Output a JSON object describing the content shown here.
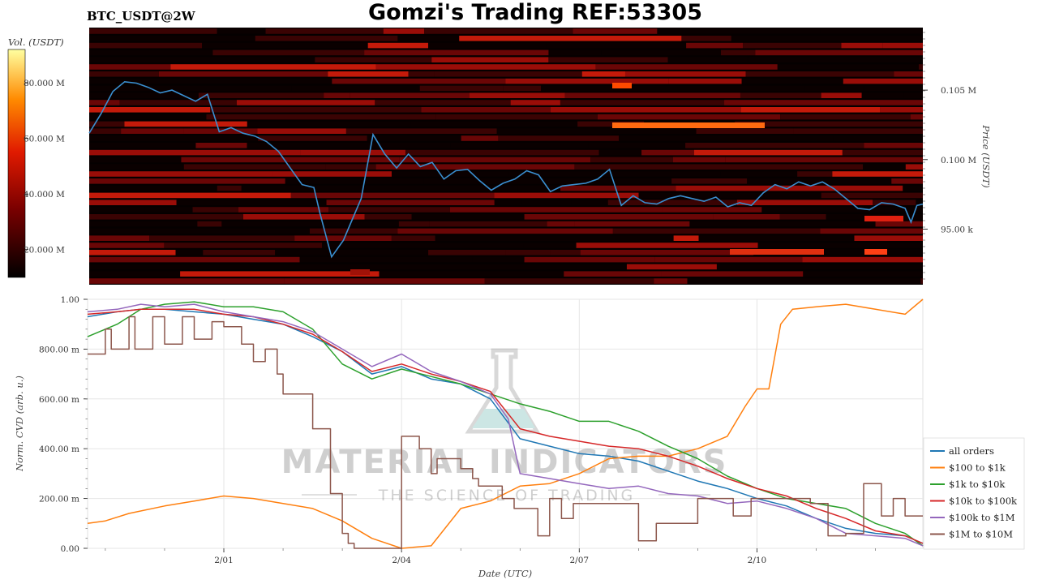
{
  "header": {
    "symbol": "BTC_USDT@2W",
    "title": "Gomzi's Trading REF:53305"
  },
  "watermark": {
    "brand": "MATERIAL INDICATORS",
    "tagline": "THE SCIENCE OF TRADING"
  },
  "colors": {
    "all_orders": "#1f77b4",
    "r100_1k": "#ff7f0e",
    "r1k_10k": "#2ca02c",
    "r10k_100k": "#d62728",
    "r100k_1m": "#9467bd",
    "r1m_10m": "#8c564b",
    "price_line": "#3a8fd0"
  },
  "chart_data": [
    {
      "type": "heatmap",
      "colorbar": {
        "label": "Vol. (USDT)",
        "ticks": [
          "20.000 M",
          "40.000 M",
          "60.000 M",
          "80.000 M"
        ],
        "tick_values": [
          20,
          40,
          60,
          80
        ],
        "range": [
          10,
          92
        ]
      },
      "ylabel": "Price (USDT)",
      "y_ticks": [
        "95.00 k",
        "0.100 M",
        "0.105 M"
      ],
      "y_tick_values": [
        95000,
        100000,
        105000
      ],
      "ylim": [
        91000,
        109500
      ],
      "x_ticks": [
        "2/01",
        "2/04",
        "2/07",
        "2/10"
      ],
      "xlim": [
        -1.3,
        12.8
      ],
      "price_series": {
        "x": [
          -1.3,
          -1.1,
          -0.9,
          -0.7,
          -0.5,
          -0.3,
          -0.1,
          0.1,
          0.3,
          0.5,
          0.7,
          0.9,
          1.1,
          1.3,
          1.5,
          1.7,
          1.9,
          2.1,
          2.3,
          2.5,
          2.6,
          2.8,
          3.0,
          3.1,
          3.3,
          3.5,
          3.7,
          3.9,
          4.1,
          4.3,
          4.5,
          4.7,
          4.9,
          5.1,
          5.3,
          5.5,
          5.7,
          5.9,
          6.1,
          6.3,
          6.5,
          6.7,
          6.9,
          7.1,
          7.3,
          7.5,
          7.7,
          7.9,
          8.1,
          8.3,
          8.5,
          8.7,
          8.9,
          9.1,
          9.3,
          9.5,
          9.7,
          9.9,
          10.1,
          10.3,
          10.5,
          10.7,
          10.9,
          11.1,
          11.3,
          11.5,
          11.7,
          11.9,
          12.1,
          12.3,
          12.5,
          12.6,
          12.7,
          12.8
        ],
        "y": [
          101900,
          103300,
          104900,
          105600,
          105500,
          105200,
          104800,
          105000,
          104600,
          104200,
          104700,
          102000,
          102300,
          101900,
          101700,
          101300,
          100600,
          99400,
          98200,
          98000,
          96200,
          93000,
          94200,
          95200,
          97200,
          101800,
          100400,
          99400,
          100400,
          99500,
          99800,
          98600,
          99200,
          99300,
          98500,
          97800,
          98300,
          98600,
          99200,
          98900,
          97700,
          98100,
          98200,
          98300,
          98600,
          99300,
          96700,
          97400,
          96900,
          96800,
          97200,
          97400,
          97200,
          97000,
          97300,
          96600,
          96900,
          96700,
          97600,
          98200,
          97900,
          98400,
          98100,
          98400,
          97900,
          97200,
          96500,
          96400,
          96900,
          96800,
          96500,
          95500,
          96700,
          96800
        ]
      }
    },
    {
      "type": "line",
      "xlabel": "Date (UTC)",
      "ylabel": "Norm. CVD (arb. u.)",
      "x_ticks": [
        "2/01",
        "2/04",
        "2/07",
        "2/10"
      ],
      "x_tick_values": [
        1,
        4,
        7,
        10
      ],
      "xlim": [
        -1.3,
        12.8
      ],
      "y_ticks": [
        "0.00",
        "200.00 m",
        "400.00 m",
        "600.00 m",
        "800.00 m",
        "1.00"
      ],
      "y_tick_values": [
        0,
        0.2,
        0.4,
        0.6,
        0.8,
        1.0
      ],
      "ylim": [
        0,
        1.0
      ],
      "legend_position": "bottom-right",
      "series": [
        {
          "name": "all orders",
          "key": "all_orders",
          "x": [
            -1.3,
            -0.8,
            -0.4,
            0,
            0.5,
            1.0,
            1.5,
            2.0,
            2.5,
            3.0,
            3.5,
            4.0,
            4.5,
            5.0,
            5.5,
            6.0,
            6.5,
            7.0,
            7.5,
            8.0,
            8.5,
            9.0,
            9.5,
            10.0,
            10.5,
            11.0,
            11.5,
            12.0,
            12.5,
            12.8
          ],
          "y": [
            0.93,
            0.95,
            0.96,
            0.96,
            0.95,
            0.94,
            0.92,
            0.9,
            0.85,
            0.79,
            0.7,
            0.73,
            0.68,
            0.66,
            0.6,
            0.44,
            0.41,
            0.38,
            0.37,
            0.35,
            0.31,
            0.27,
            0.24,
            0.2,
            0.17,
            0.12,
            0.08,
            0.06,
            0.05,
            0.02
          ]
        },
        {
          "name": "$100 to $1k",
          "key": "r100_1k",
          "x": [
            -1.3,
            -1.0,
            -0.6,
            0,
            0.5,
            1.0,
            1.5,
            2.0,
            2.5,
            3.0,
            3.5,
            4.0,
            4.5,
            5.0,
            5.5,
            6.0,
            6.5,
            7.0,
            7.5,
            8.0,
            8.5,
            9.0,
            9.5,
            9.8,
            10.0,
            10.2,
            10.4,
            10.6,
            11.0,
            11.5,
            12.0,
            12.5,
            12.8
          ],
          "y": [
            0.1,
            0.11,
            0.14,
            0.17,
            0.19,
            0.21,
            0.2,
            0.18,
            0.16,
            0.11,
            0.04,
            0.0,
            0.01,
            0.16,
            0.19,
            0.25,
            0.26,
            0.3,
            0.36,
            0.37,
            0.37,
            0.4,
            0.45,
            0.57,
            0.64,
            0.64,
            0.9,
            0.96,
            0.97,
            0.98,
            0.96,
            0.94,
            1.0
          ]
        },
        {
          "name": "$1k to $10k",
          "key": "r1k_10k",
          "x": [
            -1.3,
            -0.8,
            -0.4,
            0,
            0.5,
            1.0,
            1.5,
            2.0,
            2.5,
            3.0,
            3.5,
            4.0,
            4.5,
            5.0,
            5.5,
            6.0,
            6.5,
            7.0,
            7.5,
            8.0,
            8.5,
            9.0,
            9.5,
            10.0,
            10.5,
            11.0,
            11.5,
            12.0,
            12.5,
            12.8
          ],
          "y": [
            0.85,
            0.9,
            0.96,
            0.98,
            0.99,
            0.97,
            0.97,
            0.95,
            0.88,
            0.74,
            0.68,
            0.72,
            0.69,
            0.66,
            0.62,
            0.58,
            0.55,
            0.51,
            0.51,
            0.47,
            0.41,
            0.36,
            0.29,
            0.24,
            0.2,
            0.18,
            0.16,
            0.1,
            0.06,
            0.01
          ]
        },
        {
          "name": "$10k to $100k",
          "key": "r10k_100k",
          "x": [
            -1.3,
            -0.8,
            -0.4,
            0,
            0.5,
            1.0,
            1.5,
            2.0,
            2.5,
            3.0,
            3.5,
            4.0,
            4.5,
            5.0,
            5.5,
            6.0,
            6.5,
            7.0,
            7.5,
            8.0,
            8.5,
            9.0,
            9.5,
            10.0,
            10.5,
            11.0,
            11.5,
            12.0,
            12.5,
            12.8
          ],
          "y": [
            0.94,
            0.95,
            0.96,
            0.96,
            0.96,
            0.94,
            0.93,
            0.9,
            0.86,
            0.79,
            0.71,
            0.74,
            0.7,
            0.67,
            0.63,
            0.48,
            0.45,
            0.43,
            0.41,
            0.4,
            0.37,
            0.33,
            0.28,
            0.24,
            0.21,
            0.16,
            0.12,
            0.07,
            0.05,
            0.02
          ]
        },
        {
          "name": "$100k to $1M",
          "key": "r100k_1m",
          "x": [
            -1.3,
            -0.8,
            -0.4,
            0,
            0.5,
            1.0,
            1.5,
            2.0,
            2.5,
            3.0,
            3.5,
            4.0,
            4.5,
            5.0,
            5.5,
            5.8,
            6.0,
            6.5,
            7.0,
            7.5,
            8.0,
            8.5,
            9.0,
            9.5,
            10.0,
            10.5,
            11.0,
            11.5,
            12.0,
            12.5,
            12.8
          ],
          "y": [
            0.95,
            0.96,
            0.98,
            0.97,
            0.98,
            0.95,
            0.93,
            0.91,
            0.87,
            0.8,
            0.73,
            0.78,
            0.71,
            0.67,
            0.62,
            0.52,
            0.3,
            0.28,
            0.26,
            0.24,
            0.25,
            0.22,
            0.21,
            0.18,
            0.19,
            0.16,
            0.12,
            0.06,
            0.05,
            0.04,
            0.01
          ]
        },
        {
          "name": "$1M to $10M",
          "key": "r1m_10m",
          "x": [
            -1.3,
            -1.0,
            -0.9,
            -0.6,
            -0.5,
            -0.2,
            0,
            0.3,
            0.5,
            0.8,
            1.0,
            1.3,
            1.5,
            1.7,
            1.9,
            2.0,
            2.1,
            2.4,
            2.5,
            2.8,
            3.0,
            3.1,
            3.2,
            3.4,
            3.6,
            3.8,
            3.9,
            4.0,
            4.1,
            4.2,
            4.3,
            4.5,
            4.6,
            4.8,
            5.0,
            5.2,
            5.3,
            5.5,
            5.7,
            5.9,
            6.1,
            6.3,
            6.5,
            6.7,
            6.9,
            7.1,
            7.3,
            7.5,
            7.7,
            8.0,
            8.3,
            8.6,
            8.9,
            9.0,
            9.3,
            9.6,
            9.9,
            10.0,
            10.3,
            10.6,
            10.9,
            11.2,
            11.5,
            11.8,
            12.1,
            12.3,
            12.5,
            12.8
          ],
          "y": [
            0.78,
            0.88,
            0.8,
            0.93,
            0.8,
            0.93,
            0.82,
            0.93,
            0.84,
            0.91,
            0.89,
            0.82,
            0.75,
            0.8,
            0.7,
            0.62,
            0.62,
            0.62,
            0.48,
            0.22,
            0.06,
            0.02,
            0.0,
            0.0,
            0.0,
            0.0,
            0.0,
            0.45,
            0.45,
            0.45,
            0.4,
            0.3,
            0.36,
            0.36,
            0.32,
            0.28,
            0.25,
            0.25,
            0.2,
            0.16,
            0.16,
            0.05,
            0.2,
            0.12,
            0.18,
            0.18,
            0.18,
            0.18,
            0.18,
            0.03,
            0.1,
            0.1,
            0.1,
            0.2,
            0.2,
            0.13,
            0.2,
            0.2,
            0.2,
            0.2,
            0.18,
            0.05,
            0.06,
            0.26,
            0.13,
            0.2,
            0.13,
            0.13
          ]
        }
      ]
    }
  ]
}
